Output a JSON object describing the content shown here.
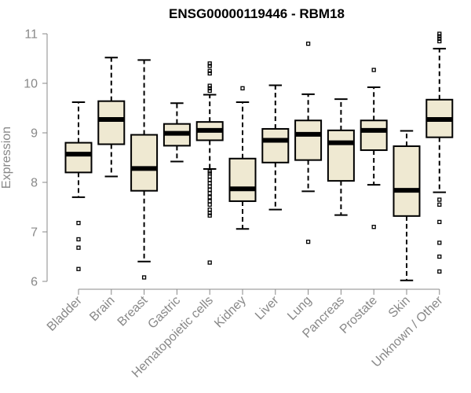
{
  "chart_data": {
    "type": "boxplot",
    "title": "ENSG00000119446 - RBM18",
    "xlabel": "",
    "ylabel": "Expression",
    "ylim": [
      6,
      11
    ],
    "yticks": [
      6,
      7,
      8,
      9,
      10,
      11
    ],
    "box_fill": "#efe9d2",
    "categories": [
      "Bladder",
      "Brain",
      "Breast",
      "Gastric",
      "Hematopoietic cells",
      "Kidney",
      "Liver",
      "Lung",
      "Pancreas",
      "Prostate",
      "Skin",
      "Unknown / Other"
    ],
    "boxes": [
      {
        "name": "Bladder",
        "min": 7.7,
        "q1": 8.2,
        "median": 8.57,
        "q3": 8.8,
        "max": 9.62,
        "outliers": [
          7.18,
          6.85,
          6.68,
          6.25
        ]
      },
      {
        "name": "Brain",
        "min": 8.12,
        "q1": 8.77,
        "median": 9.27,
        "q3": 9.64,
        "max": 10.52,
        "outliers": []
      },
      {
        "name": "Breast",
        "min": 6.4,
        "q1": 7.83,
        "median": 8.28,
        "q3": 8.96,
        "max": 10.47,
        "outliers": [
          6.08
        ]
      },
      {
        "name": "Gastric",
        "min": 8.42,
        "q1": 8.74,
        "median": 8.99,
        "q3": 9.18,
        "max": 9.6,
        "outliers": []
      },
      {
        "name": "Hematopoietic cells",
        "min": 8.27,
        "q1": 8.85,
        "median": 9.05,
        "q3": 9.22,
        "max": 9.77,
        "outliers": [
          10.4,
          10.35,
          10.25,
          10.2,
          9.95,
          9.9,
          9.85,
          8.22,
          8.18,
          8.12,
          8.05,
          7.98,
          7.92,
          7.85,
          7.78,
          7.7,
          7.62,
          7.55,
          7.45,
          7.38,
          7.33,
          6.38
        ]
      },
      {
        "name": "Kidney",
        "min": 7.06,
        "q1": 7.62,
        "median": 7.87,
        "q3": 8.48,
        "max": 9.62,
        "outliers": [
          9.9
        ]
      },
      {
        "name": "Liver",
        "min": 7.45,
        "q1": 8.4,
        "median": 8.85,
        "q3": 9.08,
        "max": 9.96,
        "outliers": []
      },
      {
        "name": "Lung",
        "min": 7.82,
        "q1": 8.45,
        "median": 8.97,
        "q3": 9.25,
        "max": 9.78,
        "outliers": [
          10.8,
          6.8
        ]
      },
      {
        "name": "Pancreas",
        "min": 7.34,
        "q1": 8.03,
        "median": 8.8,
        "q3": 9.05,
        "max": 9.68,
        "outliers": []
      },
      {
        "name": "Prostate",
        "min": 7.95,
        "q1": 8.65,
        "median": 9.05,
        "q3": 9.25,
        "max": 9.92,
        "outliers": [
          10.27,
          7.1
        ]
      },
      {
        "name": "Skin",
        "min": 6.02,
        "q1": 7.32,
        "median": 7.84,
        "q3": 8.73,
        "max": 9.04,
        "outliers": []
      },
      {
        "name": "Unknown / Other",
        "min": 7.8,
        "q1": 8.91,
        "median": 9.27,
        "q3": 9.67,
        "max": 10.7,
        "outliers": [
          11.0,
          10.95,
          10.9,
          10.85,
          7.65,
          7.55,
          7.2,
          6.78,
          6.5,
          6.2
        ]
      }
    ]
  }
}
